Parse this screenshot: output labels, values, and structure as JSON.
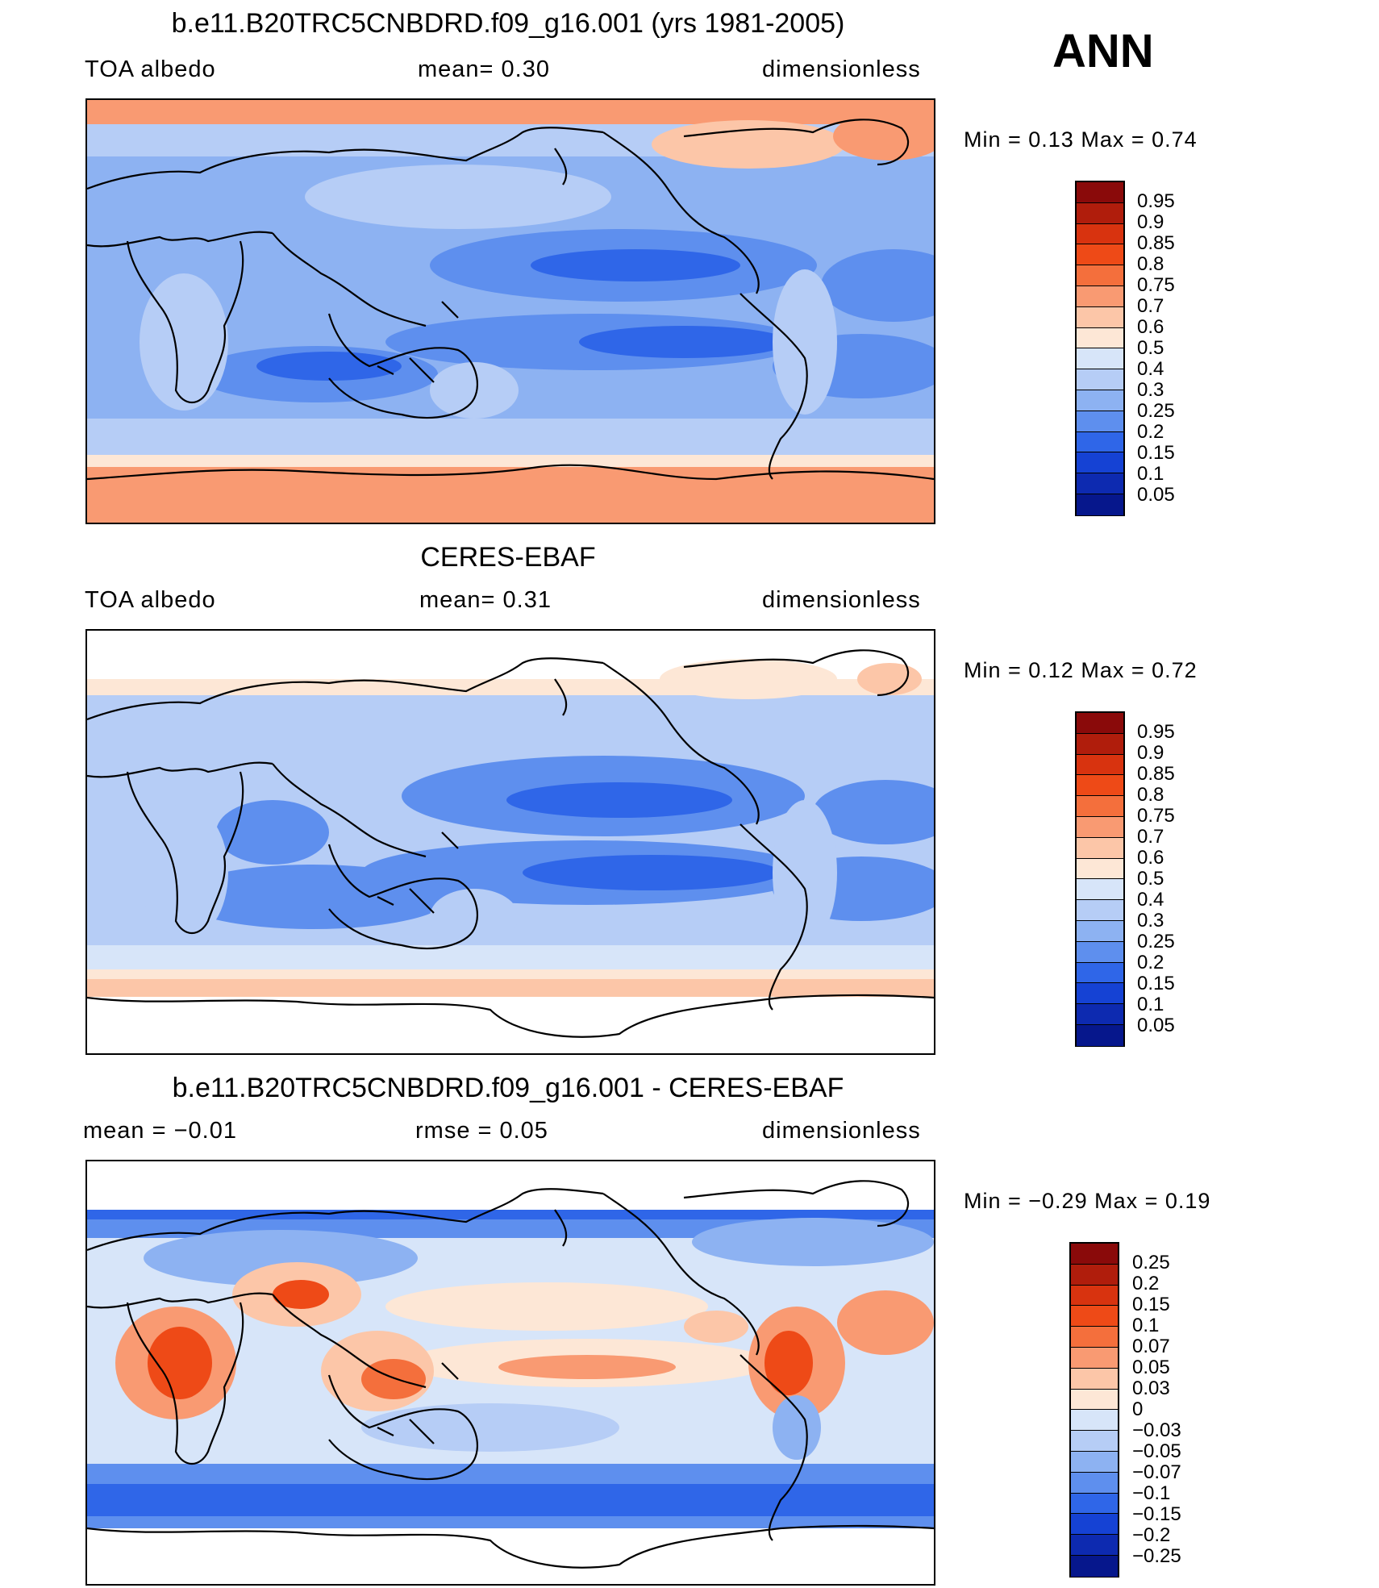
{
  "season": "ANN",
  "panels": [
    {
      "title": "b.e11.B20TRC5CNBDRD.f09_g16.001 (yrs 1981-2005)",
      "left": "TOA  albedo",
      "middle": "mean=    0.30",
      "right": "dimensionless",
      "minmax": "Min  =     0.13  Max  =     0.74",
      "ticks": [
        "0.95",
        "0.9",
        "0.85",
        "0.8",
        "0.75",
        "0.7",
        "0.6",
        "0.5",
        "0.4",
        "0.3",
        "0.25",
        "0.2",
        "0.15",
        "0.1",
        "0.05"
      ]
    },
    {
      "title": "CERES-EBAF",
      "left": "TOA  albedo",
      "middle": "mean=    0.31",
      "right": "dimensionless",
      "minmax": "Min  =     0.12  Max  =     0.72",
      "ticks": [
        "0.95",
        "0.9",
        "0.85",
        "0.8",
        "0.75",
        "0.7",
        "0.6",
        "0.5",
        "0.4",
        "0.3",
        "0.25",
        "0.2",
        "0.15",
        "0.1",
        "0.05"
      ]
    },
    {
      "title": "b.e11.B20TRC5CNBDRD.f09_g16.001 - CERES-EBAF",
      "left": "mean  =   −0.01",
      "middle": "rmse  =     0.05",
      "right": "dimensionless",
      "minmax": "Min  =   −0.29  Max  =     0.19",
      "ticks": [
        "0.25",
        "0.2",
        "0.15",
        "0.1",
        "0.07",
        "0.05",
        "0.03",
        "0",
        "−0.03",
        "−0.05",
        "−0.07",
        "−0.1",
        "−0.15",
        "−0.2",
        "−0.25"
      ]
    }
  ],
  "palette": [
    "#8a0a0a",
    "#b01d0c",
    "#d8330f",
    "#ee4a17",
    "#f46f3c",
    "#f99a72",
    "#fcc6a8",
    "#fde7d6",
    "#d7e5f9",
    "#b6cdf6",
    "#8db2f2",
    "#5e8fee",
    "#2f66e8",
    "#1542d4",
    "#0d2ab0",
    "#06178c"
  ],
  "icons": {
    "coastline": "coastline-outline-icon"
  }
}
